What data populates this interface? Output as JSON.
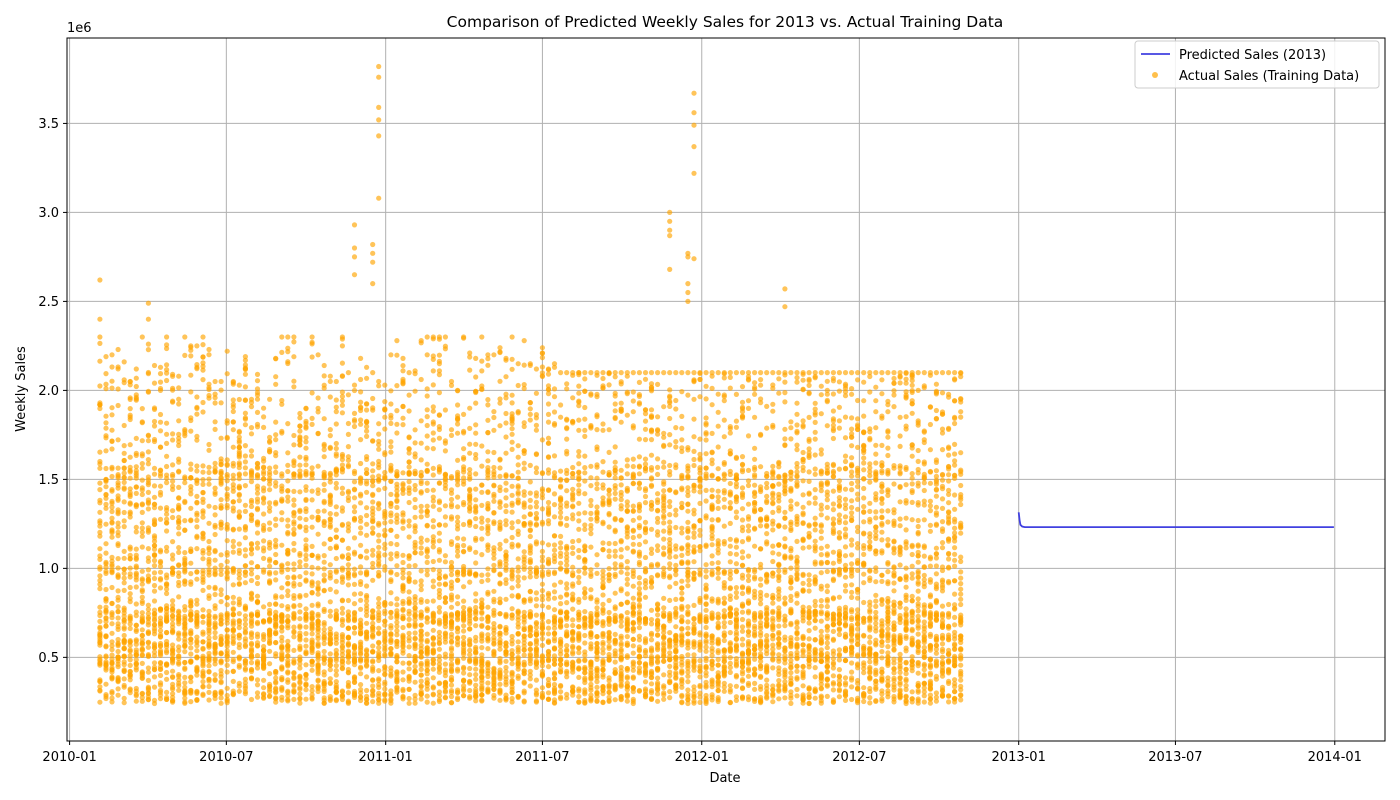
{
  "chart_data": {
    "type": "line",
    "title": "Comparison of Predicted Weekly Sales for 2013 vs. Actual Training Data",
    "xlabel": "Date",
    "ylabel": "Weekly Sales",
    "y_offset_label": "1e6",
    "x_axis": "date",
    "xlim": [
      "2009-12-29",
      "2014-02-28"
    ],
    "ylim": [
      0.03,
      3.98
    ],
    "y_ticks": [
      0.5,
      1.0,
      1.5,
      2.0,
      2.5,
      3.0,
      3.5
    ],
    "y_tick_labels": [
      "0.5",
      "1.0",
      "1.5",
      "2.0",
      "2.5",
      "3.0",
      "3.5"
    ],
    "x_ticks": [
      "2010-01-01",
      "2010-07-01",
      "2011-01-01",
      "2011-07-01",
      "2012-01-01",
      "2012-07-01",
      "2013-01-01",
      "2013-07-01",
      "2014-01-01"
    ],
    "x_tick_labels": [
      "2010-01",
      "2010-07",
      "2011-01",
      "2011-07",
      "2012-01",
      "2012-07",
      "2013-01",
      "2013-07",
      "2014-01"
    ],
    "grid": true,
    "legend_position": "top-right",
    "series": [
      {
        "name": "Predicted Sales (2013)",
        "kind": "line",
        "color": "#4040e0",
        "x": [
          "2013-01-01",
          "2013-01-02",
          "2013-01-03",
          "2013-01-05",
          "2013-01-08",
          "2013-02-01",
          "2013-04-01",
          "2013-07-01",
          "2013-10-01",
          "2013-12-31"
        ],
        "y": [
          1.315,
          1.27,
          1.245,
          1.235,
          1.232,
          1.232,
          1.232,
          1.232,
          1.232,
          1.232
        ]
      },
      {
        "name": "Actual Sales (Training Data)",
        "kind": "scatter",
        "color": "#ffa500",
        "x_range": [
          "2010-02-05",
          "2012-10-26"
        ],
        "frequency": "weekly",
        "y_range": [
          0.21,
          3.82
        ],
        "weekly_max": [
          2.62,
          2.19,
          2.2,
          2.23,
          2.16,
          2.05,
          2.12,
          2.49,
          2.26,
          2.14,
          2.13,
          2.37,
          2.09,
          2.08,
          2.36,
          2.25,
          2.25,
          2.33,
          2.23,
          2.05,
          2.05,
          2.22,
          2.05,
          2.03,
          2.19,
          1.95,
          2.09,
          1.9,
          1.95,
          2.18,
          2.93,
          2.82,
          3.82,
          1.87,
          1.9,
          2.35,
          2.2,
          2.14,
          2.08,
          2.05,
          2.31,
          2.1,
          2.03,
          2.18,
          2.13,
          2.1,
          2.05,
          2.03,
          2.2,
          2.28,
          2.18,
          2.1,
          2.11,
          2.28,
          2.3,
          3.0,
          2.77,
          3.67,
          2.05,
          2.0,
          2.46,
          2.21,
          2.18,
          2.57,
          2.2,
          2.2,
          2.24,
          2.18,
          2.36,
          2.15,
          2.28,
          2.15,
          2.12,
          2.24,
          2.12,
          2.15
        ],
        "spikes": [
          {
            "date": "2010-02-05",
            "values": [
              2.62,
              2.4
            ]
          },
          {
            "date": "2010-04-02",
            "values": [
              2.49,
              2.4
            ]
          },
          {
            "date": "2010-11-26",
            "values": [
              2.93,
              2.8,
              2.75,
              2.65
            ]
          },
          {
            "date": "2010-12-17",
            "values": [
              2.82,
              2.77,
              2.72,
              2.6
            ]
          },
          {
            "date": "2010-12-24",
            "values": [
              3.82,
              3.76,
              3.59,
              3.52,
              3.43,
              3.08
            ]
          },
          {
            "date": "2011-11-25",
            "values": [
              3.0,
              2.95,
              2.9,
              2.87,
              2.68
            ]
          },
          {
            "date": "2011-12-16",
            "values": [
              2.77,
              2.75,
              2.6,
              2.55,
              2.5
            ]
          },
          {
            "date": "2011-12-23",
            "values": [
              3.67,
              3.56,
              3.49,
              3.37,
              3.22,
              2.74
            ]
          },
          {
            "date": "2012-04-06",
            "values": [
              2.57,
              2.47
            ]
          }
        ]
      }
    ]
  }
}
